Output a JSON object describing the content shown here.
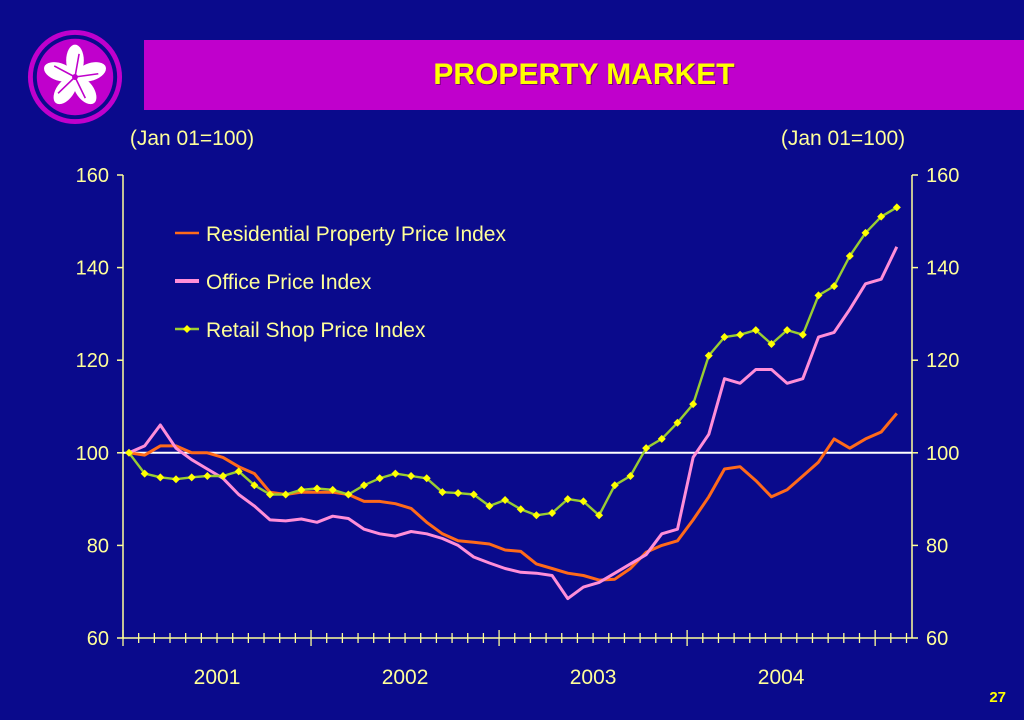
{
  "slide": {
    "title": "PROPERTY MARKET",
    "page_number": "27"
  },
  "colors": {
    "background": "#0a0a8c",
    "title_bar": "#c000cc",
    "title_text": "#ffff00",
    "axis": "#ffff99",
    "baseline": "#ffffff"
  },
  "chart_data": {
    "type": "line",
    "left_axis_unit": "(Jan 01=100)",
    "right_axis_unit": "(Jan 01=100)",
    "ylim": [
      60,
      160
    ],
    "yticks": [
      "60",
      "80",
      "100",
      "120",
      "140",
      "160"
    ],
    "xlim": [
      0,
      50
    ],
    "year_labels": [
      "2001",
      "2002",
      "2003",
      "2004"
    ],
    "reference_line": 100,
    "legend_position": "top-left",
    "series": [
      {
        "name": "Residential Property Price Index",
        "color": "#ff6a1a",
        "marker": "none",
        "values": [
          100,
          99.5,
          101.5,
          101.5,
          100,
          100,
          99,
          97,
          95.5,
          91.5,
          91,
          91.5,
          91.5,
          91.5,
          91,
          89.5,
          89.5,
          89,
          88,
          85,
          82.5,
          81,
          80.7,
          80.3,
          79,
          78.7,
          76,
          75,
          74,
          73.5,
          72.5,
          72.7,
          75,
          78.5,
          80,
          81,
          85.5,
          90.5,
          96.5,
          97,
          94,
          90.5,
          92,
          95,
          98,
          103,
          101,
          103,
          104.5,
          108.5
        ]
      },
      {
        "name": "Office Price Index",
        "color": "#ff8ed8",
        "marker": "none",
        "values": [
          100,
          101.5,
          106,
          101,
          98.5,
          96.5,
          94.5,
          91,
          88.5,
          85.5,
          85.3,
          85.7,
          85,
          86.3,
          85.8,
          83.5,
          82.5,
          82,
          83,
          82.5,
          81.5,
          80,
          77.5,
          76.2,
          75,
          74.2,
          74,
          73.5,
          68.5,
          71,
          72,
          74,
          76,
          78,
          82.5,
          83.5,
          99,
          104,
          116,
          115,
          118,
          118,
          115,
          116,
          125,
          126,
          131,
          136.5,
          137.5,
          144.5
        ]
      },
      {
        "name": "Retail Shop Price Index",
        "color": "#9acd32",
        "marker": "diamond",
        "marker_color": "#ffff00",
        "values": [
          100,
          95.5,
          94.7,
          94.3,
          94.7,
          95,
          95,
          96,
          93,
          91,
          91,
          92,
          92.3,
          92,
          91,
          93,
          94.5,
          95.5,
          95,
          94.5,
          91.5,
          91.3,
          91,
          88.5,
          89.8,
          87.8,
          86.5,
          87,
          90,
          89.5,
          86.5,
          93,
          95,
          101,
          103,
          106.5,
          110.5,
          121,
          125,
          125.5,
          126.5,
          123.5,
          126.5,
          125.5,
          134,
          136,
          142.5,
          147.5,
          151,
          153
        ]
      }
    ]
  }
}
